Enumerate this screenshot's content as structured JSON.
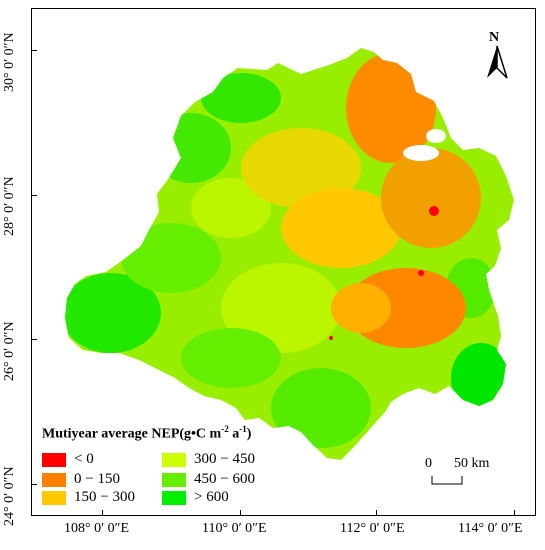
{
  "map": {
    "north_label": "N",
    "y_labels": [
      "30° 0′ 0″N",
      "28° 0′ 0″N",
      "26° 0′ 0″N",
      "24° 0′ 0″N"
    ],
    "x_labels": [
      "108° 0′ 0″E",
      "110° 0′ 0″E",
      "112° 0′ 0″E",
      "114° 0′ 0″E"
    ],
    "legend": {
      "title_text": "Mutiyear average NEP(g•C m",
      "title_sup1": "-2",
      "title_mid": " a",
      "title_sup2": "-1",
      "title_end": ")",
      "items": [
        {
          "label": "< 0",
          "color": "#ff0000"
        },
        {
          "label": "300 − 450",
          "color": "#ccff00"
        },
        {
          "label": "0 − 150",
          "color": "#ff8000"
        },
        {
          "label": "450 − 600",
          "color": "#66ee00"
        },
        {
          "label": "150 − 300",
          "color": "#ffc800"
        },
        {
          "label": "> 600",
          "color": "#00ee00"
        }
      ]
    },
    "scale": {
      "start": "0",
      "end": "50 km"
    }
  }
}
